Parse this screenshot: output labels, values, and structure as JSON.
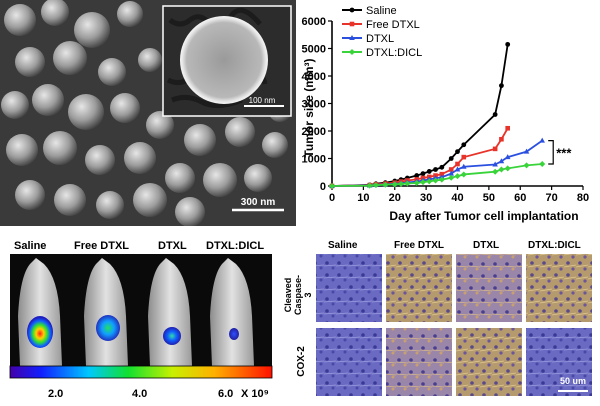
{
  "sem": {
    "scale_main": "300 nm",
    "scale_inset": "100 nm"
  },
  "chart_data": {
    "type": "line",
    "ylabel": "Tumor size (mm³)",
    "xlabel": "Day after Tumor cell implantation",
    "xlim": [
      0,
      80
    ],
    "ylim": [
      0,
      6000
    ],
    "xticks": [
      0,
      10,
      20,
      30,
      40,
      50,
      60,
      70,
      80
    ],
    "yticks": [
      0,
      1000,
      2000,
      3000,
      4000,
      5000,
      6000
    ],
    "legend_position": "top-left",
    "series": [
      {
        "name": "Saline",
        "color": "#000000",
        "marker": "circle",
        "x": [
          0,
          12,
          14,
          17,
          20,
          22,
          24,
          27,
          29,
          31,
          33,
          35,
          38,
          40,
          42,
          52,
          54,
          56
        ],
        "y": [
          0,
          40,
          80,
          120,
          180,
          230,
          290,
          380,
          450,
          530,
          600,
          680,
          1000,
          1250,
          1500,
          2600,
          3650,
          5150
        ]
      },
      {
        "name": "Free DTXL",
        "color": "#e8332b",
        "marker": "square",
        "x": [
          0,
          12,
          14,
          17,
          20,
          22,
          24,
          27,
          29,
          31,
          33,
          35,
          38,
          40,
          42,
          52,
          54,
          56
        ],
        "y": [
          0,
          30,
          60,
          90,
          120,
          160,
          200,
          240,
          290,
          330,
          380,
          430,
          600,
          800,
          1050,
          1350,
          1700,
          2100
        ]
      },
      {
        "name": "DTXL",
        "color": "#2b50e0",
        "marker": "triangle",
        "x": [
          0,
          12,
          14,
          17,
          20,
          22,
          24,
          27,
          29,
          31,
          33,
          35,
          38,
          40,
          42,
          52,
          54,
          56,
          62,
          67
        ],
        "y": [
          0,
          20,
          40,
          60,
          80,
          100,
          130,
          160,
          200,
          240,
          280,
          320,
          450,
          600,
          700,
          780,
          900,
          1050,
          1250,
          1650
        ]
      },
      {
        "name": "DTXL:DICL",
        "color": "#39d33a",
        "marker": "diamond",
        "x": [
          0,
          12,
          14,
          17,
          20,
          22,
          24,
          27,
          29,
          31,
          33,
          35,
          38,
          40,
          42,
          52,
          54,
          56,
          62,
          67
        ],
        "y": [
          0,
          15,
          30,
          45,
          60,
          75,
          90,
          110,
          140,
          170,
          200,
          230,
          300,
          360,
          420,
          520,
          600,
          640,
          750,
          800
        ]
      }
    ],
    "annotations": [
      {
        "text": "***",
        "between": [
          "DTXL",
          "DTXL:DICL"
        ]
      }
    ]
  },
  "ivis": {
    "groups": [
      "Saline",
      "Free DTXL",
      "DTXL",
      "DTXL:DICL"
    ],
    "colorbar": {
      "ticks": [
        "2.0",
        "4.0",
        "6.0"
      ],
      "unit": "X 10⁹"
    }
  },
  "ihc": {
    "columns": [
      "Saline",
      "Free DTXL",
      "DTXL",
      "DTXL:DICL"
    ],
    "rows": [
      "Cleaved Caspase-3",
      "COX-2"
    ],
    "scale": "50 um"
  }
}
